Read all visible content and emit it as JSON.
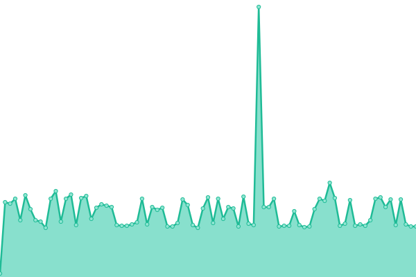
{
  "chart_data": {
    "type": "area",
    "values": [
      5,
      108,
      106,
      113,
      82,
      118,
      98,
      82,
      80,
      71,
      113,
      124,
      80,
      113,
      119,
      75,
      114,
      117,
      84,
      100,
      105,
      103,
      101,
      75,
      74,
      74,
      76,
      79,
      113,
      76,
      101,
      97,
      100,
      73,
      73,
      78,
      112,
      104,
      75,
      71,
      99,
      115,
      78,
      113,
      84,
      101,
      99,
      73,
      116,
      77,
      75,
      390,
      101,
      101,
      113,
      73,
      74,
      74,
      95,
      75,
      72,
      73,
      98,
      113,
      110,
      136,
      114,
      74,
      77,
      111,
      74,
      76,
      74,
      82,
      113,
      115,
      101,
      112,
      75,
      112,
      76,
      73,
      73
    ],
    "ylim": [
      0,
      400
    ],
    "color": "#1fbb96",
    "fill_color": "#88e0cd",
    "marker_fill": "#8fe5d2"
  }
}
